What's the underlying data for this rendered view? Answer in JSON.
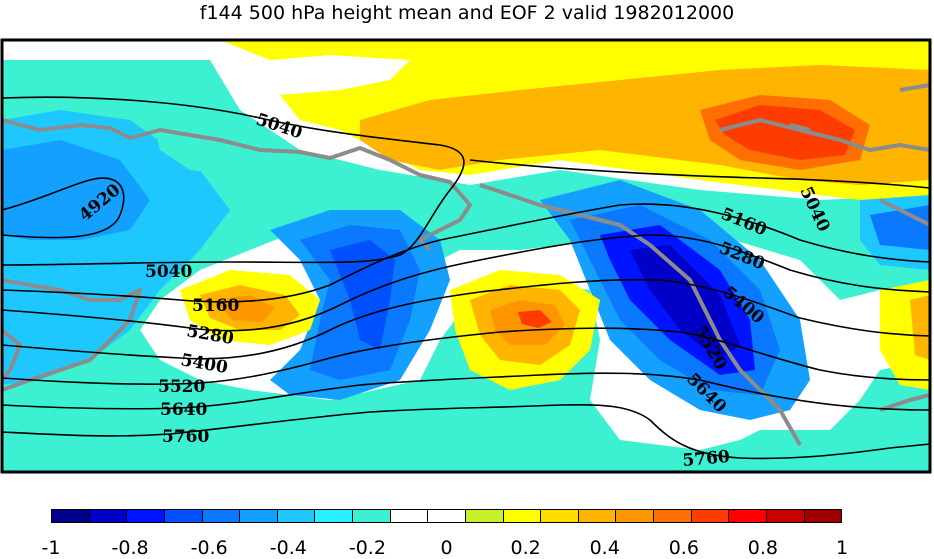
{
  "title": "f144 500 hPa height mean and EOF 2 valid 1982012000",
  "contour_labels": {
    "c4920": "4920",
    "c5040a": "5040",
    "c5040b": "5040",
    "c5040c": "5040",
    "c5160a": "5160",
    "c5160b": "5160",
    "c5280a": "5280",
    "c5280b": "5280",
    "c5400a": "5400",
    "c5400b": "5400",
    "c5520a": "5520",
    "c5520b": "5520",
    "c5640a": "5640",
    "c5640b": "5640",
    "c5760a": "5760",
    "c5760b": "5760"
  },
  "colorbar": {
    "colors": [
      "#00008c",
      "#0000c8",
      "#0014ff",
      "#0050ff",
      "#0a78ff",
      "#14a0ff",
      "#1ec8ff",
      "#28f0ff",
      "#3cf0d2",
      "#ffffff",
      "#ffffff",
      "#c8f028",
      "#ffff00",
      "#ffdc00",
      "#ffb400",
      "#ff9600",
      "#ff6e00",
      "#ff3c00",
      "#ff0000",
      "#c80000",
      "#a00000"
    ],
    "ticks": [
      "-1",
      "-0.8",
      "-0.6",
      "-0.4",
      "-0.2",
      "0",
      "0.2",
      "0.4",
      "0.6",
      "0.8",
      "1"
    ]
  }
}
